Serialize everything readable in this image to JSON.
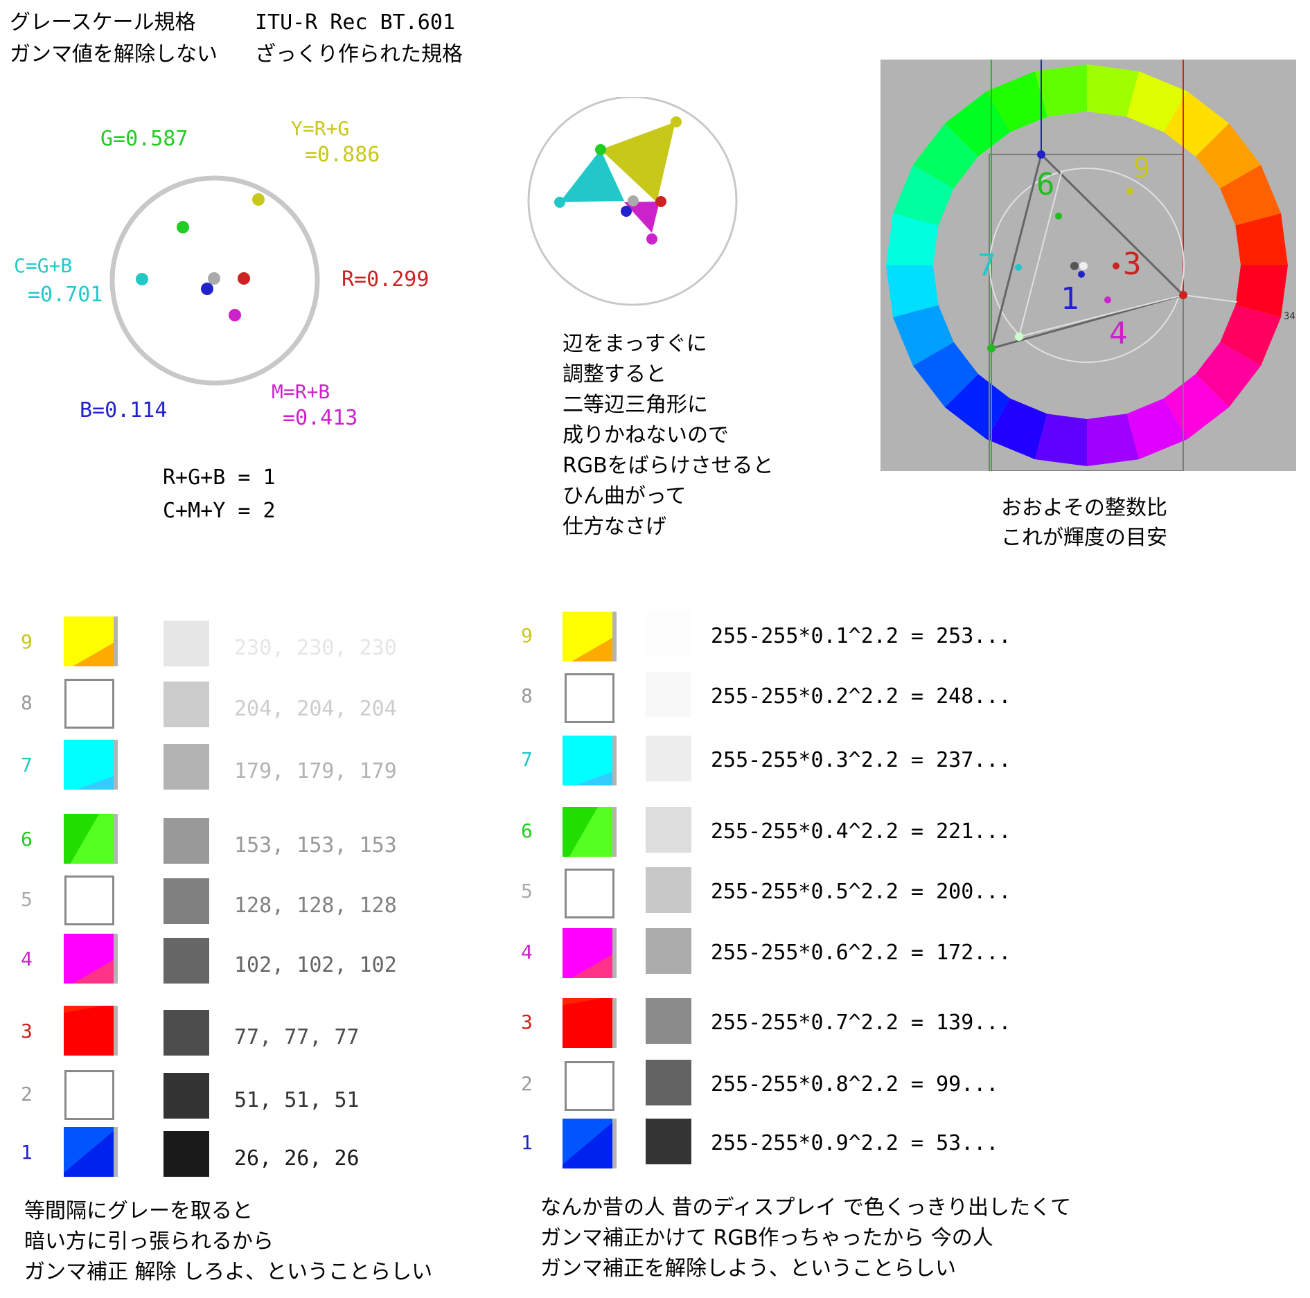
{
  "header": {
    "line1_left": "グレースケール規格",
    "line1_right": "ITU-R Rec BT.601",
    "line2_left": "ガンマ値を解除しない",
    "line2_right": "ざっくり作られた規格"
  },
  "left_circle": {
    "labels": {
      "g": "G=0.587",
      "y1": "Y=R+G",
      "y2": "=0.886",
      "c1": "C=G+B",
      "c2": "=0.701",
      "r": "R=0.299",
      "b": "B=0.114",
      "m1": "M=R+B",
      "m2": "=0.413"
    },
    "colors": {
      "g": "#22cc22",
      "y": "#c8c81a",
      "c": "#22c8c8",
      "r": "#cc2222",
      "b": "#2222cc",
      "m": "#cc22cc"
    },
    "eq1": "R+G+B  =  1",
    "eq2": "C+M+Y  =  2"
  },
  "middle_note": {
    "lines": [
      "辺をまっすぐに",
      "調整すると",
      "二等辺三角形に",
      "成りかねないので",
      "RGBをばらけさせると",
      "ひん曲がって",
      "仕方なさげ"
    ]
  },
  "wheel": {
    "labels": {
      "n6": "6",
      "n9": "9",
      "n7": "7",
      "n3": "3",
      "n1": "1",
      "n4": "4",
      "edge": "34"
    },
    "caption1": "おおよその整数比",
    "caption2": "これが輝度の目安"
  },
  "left_table": {
    "rows": [
      {
        "n": "9",
        "numcolor": "#c8c81a",
        "swatch": "yellow",
        "gray": "#e6e6e6",
        "value": "230, 230, 230",
        "valcolor": "#e6e6e6"
      },
      {
        "n": "8",
        "numcolor": "#999999",
        "swatch": "empty",
        "gray": "#cccccc",
        "value": "204, 204, 204",
        "valcolor": "#cccccc"
      },
      {
        "n": "7",
        "numcolor": "#22c8c8",
        "swatch": "cyan",
        "gray": "#b3b3b3",
        "value": "179, 179, 179",
        "valcolor": "#b3b3b3"
      },
      {
        "n": "6",
        "numcolor": "#22cc22",
        "swatch": "green",
        "gray": "#999999",
        "value": "153, 153, 153",
        "valcolor": "#999999"
      },
      {
        "n": "5",
        "numcolor": "#aaaaaa",
        "swatch": "empty",
        "gray": "#808080",
        "value": "128, 128, 128",
        "valcolor": "#808080"
      },
      {
        "n": "4",
        "numcolor": "#cc22cc",
        "swatch": "magenta",
        "gray": "#666666",
        "value": "102, 102, 102",
        "valcolor": "#666666"
      },
      {
        "n": "3",
        "numcolor": "#cc2222",
        "swatch": "red",
        "gray": "#4d4d4d",
        "value": "77, 77, 77",
        "valcolor": "#4d4d4d"
      },
      {
        "n": "2",
        "numcolor": "#999999",
        "swatch": "empty",
        "gray": "#333333",
        "value": "51, 51, 51",
        "valcolor": "#333333"
      },
      {
        "n": "1",
        "numcolor": "#2222cc",
        "swatch": "blue",
        "gray": "#1a1a1a",
        "value": "26, 26, 26",
        "valcolor": "#1a1a1a"
      }
    ],
    "note": [
      "等間隔にグレーを取ると",
      "暗い方に引っ張られるから",
      "ガンマ補正 解除 しろよ、ということらしい"
    ]
  },
  "right_table": {
    "rows": [
      {
        "n": "9",
        "numcolor": "#c8c81a",
        "swatch": "yellow",
        "gray": "#fdfdfd",
        "formula": "255-255*0.1^2.2  =  253..."
      },
      {
        "n": "8",
        "numcolor": "#999999",
        "swatch": "empty",
        "gray": "#f8f8f8",
        "formula": "255-255*0.2^2.2  =  248..."
      },
      {
        "n": "7",
        "numcolor": "#22c8c8",
        "swatch": "cyan",
        "gray": "#ededed",
        "formula": "255-255*0.3^2.2  =  237..."
      },
      {
        "n": "6",
        "numcolor": "#22cc22",
        "swatch": "green",
        "gray": "#dddddd",
        "formula": "255-255*0.4^2.2  =  221..."
      },
      {
        "n": "5",
        "numcolor": "#aaaaaa",
        "swatch": "empty",
        "gray": "#c8c8c8",
        "formula": "255-255*0.5^2.2  =  200..."
      },
      {
        "n": "4",
        "numcolor": "#cc22cc",
        "swatch": "magenta",
        "gray": "#acacac",
        "formula": "255-255*0.6^2.2  =  172..."
      },
      {
        "n": "3",
        "numcolor": "#cc2222",
        "swatch": "red",
        "gray": "#8b8b8b",
        "formula": "255-255*0.7^2.2  =  139..."
      },
      {
        "n": "2",
        "numcolor": "#999999",
        "swatch": "empty",
        "gray": "#636363",
        "formula": "255-255*0.8^2.2  =  99..."
      },
      {
        "n": "1",
        "numcolor": "#2222cc",
        "swatch": "blue",
        "gray": "#353535",
        "formula": "255-255*0.9^2.2  =  53..."
      }
    ],
    "note": [
      "なんか昔の人 昔のディスプレイ で色くっきり出したくて",
      "ガンマ補正かけて RGB作っちゃったから  今の人",
      "ガンマ補正を解除しよう、ということらしい"
    ]
  }
}
